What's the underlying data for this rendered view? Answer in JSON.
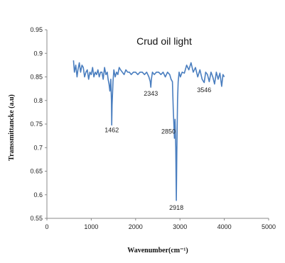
{
  "chart_data": {
    "type": "line",
    "title": "Crud oil light",
    "xlabel": "Wavenumber(cm⁻¹)",
    "ylabel": "Transsmittancke (a.u)",
    "xlim": [
      0,
      5000
    ],
    "ylim": [
      0.55,
      0.95
    ],
    "xticks": [
      0,
      1000,
      2000,
      3000,
      4000,
      5000
    ],
    "yticks": [
      0.55,
      0.6,
      0.65,
      0.7,
      0.75,
      0.8,
      0.85,
      0.9,
      0.95
    ],
    "ytick_labels": [
      "0.55",
      "0.6",
      "0.65",
      "0.7",
      "0.75",
      "0.8",
      "0.85",
      "0.9",
      "0.95"
    ],
    "grid": false,
    "line_color": "#4a7ebf",
    "series": [
      {
        "x": [
          600,
          620,
          650,
          680,
          700,
          730,
          760,
          790,
          820,
          850,
          880,
          910,
          940,
          970,
          1000,
          1030,
          1060,
          1090,
          1120,
          1150,
          1180,
          1210,
          1240,
          1270,
          1300,
          1330,
          1360,
          1380,
          1400,
          1420,
          1440,
          1455,
          1462,
          1470,
          1490,
          1510,
          1540,
          1570,
          1600,
          1630,
          1660,
          1700,
          1740,
          1780,
          1820,
          1860,
          1900,
          1950,
          2000,
          2050,
          2100,
          2150,
          2200,
          2250,
          2300,
          2330,
          2343,
          2356,
          2380,
          2420,
          2470,
          2520,
          2570,
          2620,
          2670,
          2720,
          2770,
          2800,
          2830,
          2850,
          2862,
          2875,
          2890,
          2905,
          2918,
          2930,
          2945,
          2960,
          2980,
          3010,
          3050,
          3100,
          3150,
          3200,
          3250,
          3300,
          3350,
          3400,
          3450,
          3500,
          3546,
          3580,
          3620,
          3660,
          3700,
          3740,
          3780,
          3820,
          3860,
          3900,
          3940,
          3970,
          4000
        ],
        "y": [
          0.885,
          0.86,
          0.875,
          0.85,
          0.865,
          0.88,
          0.86,
          0.875,
          0.87,
          0.85,
          0.86,
          0.865,
          0.845,
          0.86,
          0.855,
          0.87,
          0.85,
          0.86,
          0.855,
          0.865,
          0.85,
          0.86,
          0.86,
          0.845,
          0.87,
          0.855,
          0.86,
          0.845,
          0.835,
          0.82,
          0.845,
          0.8,
          0.748,
          0.79,
          0.84,
          0.865,
          0.85,
          0.86,
          0.855,
          0.87,
          0.865,
          0.86,
          0.855,
          0.865,
          0.86,
          0.86,
          0.855,
          0.86,
          0.86,
          0.855,
          0.86,
          0.86,
          0.855,
          0.86,
          0.85,
          0.84,
          0.828,
          0.845,
          0.86,
          0.855,
          0.86,
          0.86,
          0.855,
          0.86,
          0.85,
          0.86,
          0.855,
          0.845,
          0.84,
          0.78,
          0.752,
          0.72,
          0.76,
          0.7,
          0.588,
          0.69,
          0.8,
          0.84,
          0.86,
          0.85,
          0.86,
          0.858,
          0.875,
          0.865,
          0.88,
          0.86,
          0.87,
          0.85,
          0.865,
          0.845,
          0.838,
          0.86,
          0.855,
          0.84,
          0.86,
          0.85,
          0.835,
          0.86,
          0.845,
          0.858,
          0.83,
          0.855,
          0.85
        ]
      }
    ],
    "annotations": [
      {
        "text": "1462",
        "x": 1462,
        "y": 0.733
      },
      {
        "text": "2343",
        "x": 2343,
        "y": 0.81
      },
      {
        "text": "2850",
        "x": 2740,
        "y": 0.73
      },
      {
        "text": "2918",
        "x": 2918,
        "y": 0.568
      },
      {
        "text": "3546",
        "x": 3546,
        "y": 0.818
      }
    ]
  }
}
